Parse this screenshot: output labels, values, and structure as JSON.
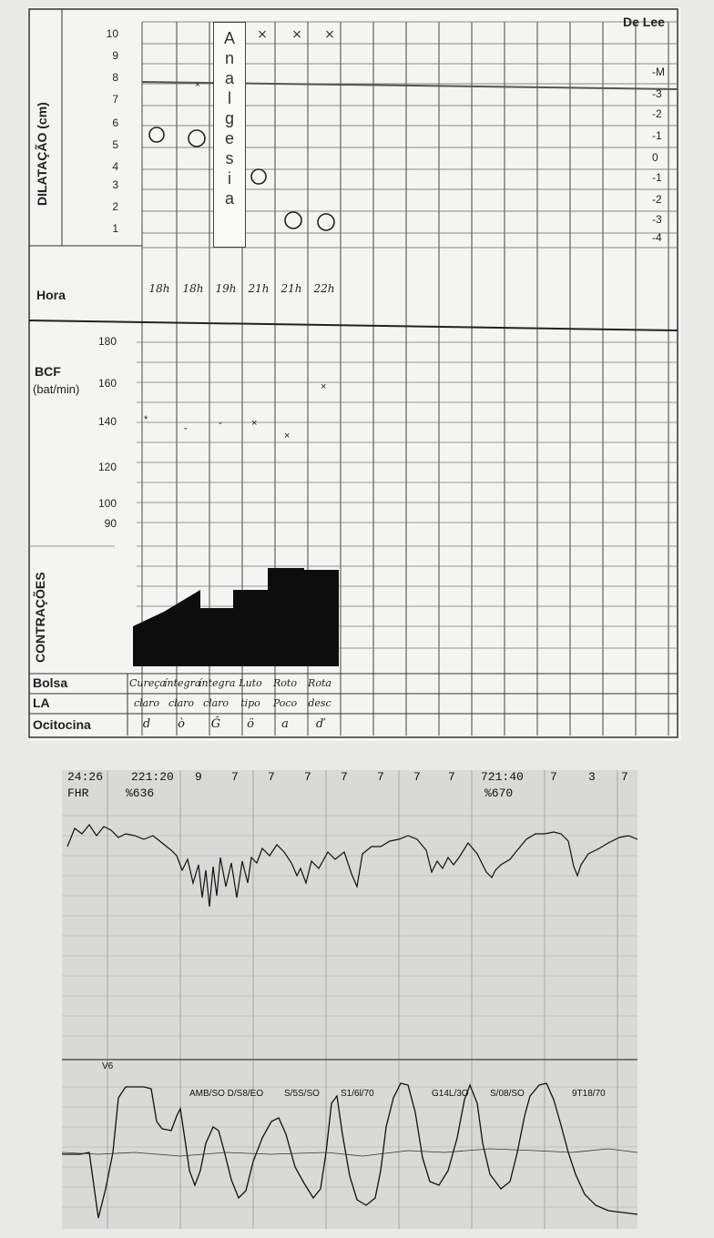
{
  "partograph": {
    "corner_label": "De Lee",
    "dilation_label": "DILATAÇÃO (cm)",
    "dilation_ticks": [
      "10",
      "9",
      "8",
      "7",
      "6",
      "5",
      "4",
      "3",
      "2",
      "1"
    ],
    "station_ticks": [
      "-M",
      "-3",
      "-2",
      "-1",
      "0",
      "-1",
      "-2",
      "-3",
      "-4"
    ],
    "analgesia_letters": [
      "A",
      "n",
      "a",
      "l",
      "g",
      "e",
      "s",
      "i",
      "a"
    ],
    "hora_label": "Hora",
    "hours": [
      "18h",
      "18h",
      "19h",
      "21h",
      "21h",
      "22h"
    ],
    "bcf_label": "BCF",
    "bcf_unit": "(bat/min)",
    "bcf_ticks": [
      "180",
      "160",
      "140",
      "120",
      "100",
      "90"
    ],
    "contractions_label": "CONTRAÇÕES",
    "bolsa_label": "Bolsa",
    "la_label": "LA",
    "ocitocina_label": "Ocitocina",
    "bolsa_values": [
      "Cureça",
      "íntegra",
      "íntegra",
      "Luto",
      "Roto",
      "Rota"
    ],
    "la_values": [
      "claro",
      "claro",
      "claro",
      "tipo",
      "Poco",
      "desc"
    ],
    "ocitocina_values": [
      "d",
      "ò",
      "Ĝ",
      "ö",
      "a",
      "ď"
    ],
    "top_marks": [
      "×",
      "×",
      "×"
    ]
  },
  "ctg": {
    "top_row": [
      "24:26",
      "221:20",
      "9",
      "7",
      "7",
      "7",
      "7",
      "7",
      "7",
      "7",
      "721:40",
      "7",
      "3",
      "7"
    ],
    "fhr_label": "FHR",
    "fhr_pct_1": "%636",
    "fhr_pct_2": "%670",
    "uc_labels": [
      "AMB/SO D/S8/EO",
      "S/5S/SO",
      "S1/6l/70",
      "G14L/3O",
      "S/08/SO",
      "9T18/70"
    ],
    "marker_left": "V6"
  }
}
